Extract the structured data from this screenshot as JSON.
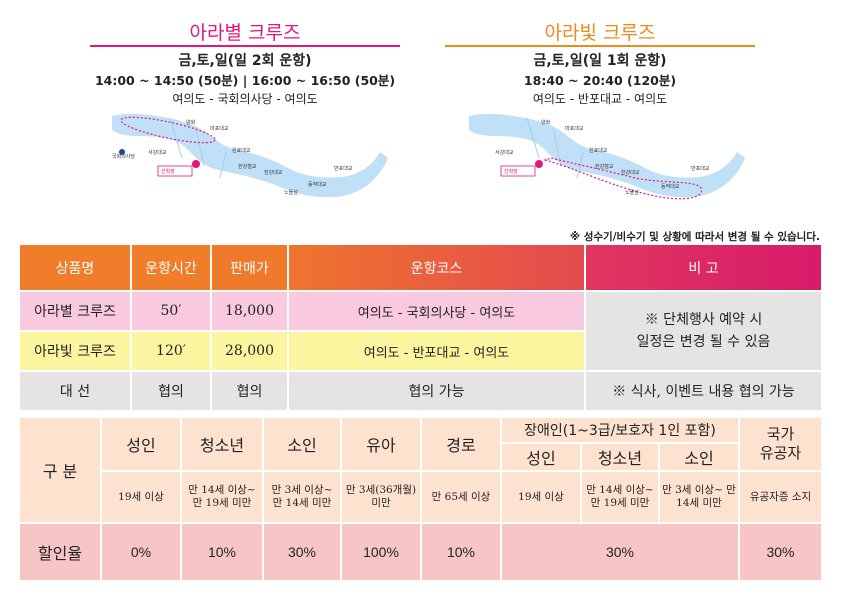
{
  "left": {
    "title": "아라별 크루즈",
    "line1": "금,토,일(일 2회 운항)",
    "line2": "14:00 ~ 14:50 (50분) | 16:00 ~ 16:50 (50분)",
    "line3": "여의도 - 국회의사당 - 여의도",
    "map_labels": [
      "양화",
      "마포대교",
      "원효대교",
      "한강철교",
      "한강대교",
      "노들섬",
      "동작대교",
      "반포대교",
      "국회의사당",
      "서강대교",
      "선착장",
      "여의도"
    ]
  },
  "right": {
    "title": "아라빛 크루즈",
    "line1": "금,토,일(일 1회 운항)",
    "line2": "18:40 ~ 20:40 (120분)",
    "line3": "여의도 - 반포대교 - 여의도",
    "map_labels": [
      "양화",
      "마포대교",
      "원효대교",
      "한강철교",
      "한강대교",
      "노들섬",
      "동작대교",
      "반포대교",
      "서강대교",
      "선착장",
      "여의도"
    ]
  },
  "note": "※ 성수기/비수기 및 상황에 따라서 변경 될 수 있습니다.",
  "colors": {
    "pink": "#e4167a",
    "orange": "#ef8a1c",
    "header_gradient_start": "#ef7d2a",
    "header_gradient_end": "#d81b6a"
  },
  "table1": {
    "headers": [
      "상품명",
      "운항시간",
      "판매가",
      "운항코스",
      "비 고"
    ],
    "rows": [
      {
        "name": "아라별 크루즈",
        "time": "50′",
        "price": "18,000",
        "course": "여의도 - 국회의사당 -  여의도"
      },
      {
        "name": "아라빛 크루즈",
        "time": "120′",
        "price": "28,000",
        "course": "여의도 - 반포대교 -  여의도"
      },
      {
        "name": "대 선",
        "time": "협의",
        "price": "협의",
        "course": "협의 가능"
      }
    ],
    "remark1": "※ 단체행사 예약 시",
    "remark1b": "일정은 변경 될 수 있음",
    "remark2": "※ 식사, 이벤트 내용 협의 가능"
  },
  "table2": {
    "label": "구 분",
    "rate_label": "할인율",
    "cols": [
      {
        "name": "성인",
        "age": "19세 이상",
        "rate": "0%"
      },
      {
        "name": "청소년",
        "age": "만 14세 이상~ 만 19세 미만",
        "rate": "10%"
      },
      {
        "name": "소인",
        "age": "만 3세 이상~ 만 14세 미만",
        "rate": "30%"
      },
      {
        "name": "유아",
        "age": "만 3세(36개월) 미만",
        "rate": "100%"
      },
      {
        "name": "경로",
        "age": "만 65세 이상",
        "rate": "10%"
      }
    ],
    "disabled": {
      "label": "장애인(1~3급/보호자 1인 포함)",
      "cols": [
        {
          "name": "성인",
          "age": "19세 이상"
        },
        {
          "name": "청소년",
          "age": "만 14세 이상~ 만 19세 미만"
        },
        {
          "name": "소인",
          "age": "만 3세 이상~ 만 14세 미만"
        }
      ],
      "rate": "30%"
    },
    "merit": {
      "name1": "국가",
      "name2": "유공자",
      "age": "유공자증 소지",
      "rate": "30%"
    }
  }
}
